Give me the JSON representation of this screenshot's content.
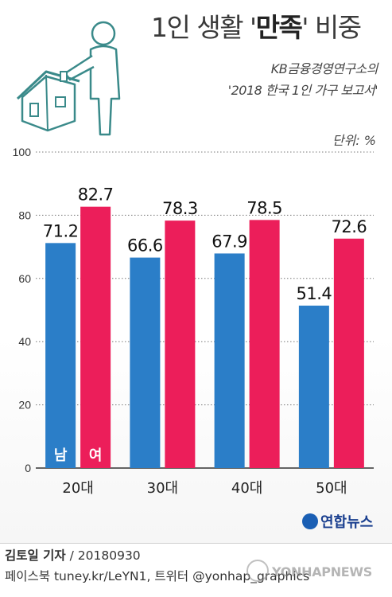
{
  "header": {
    "title_prefix": "1인 생활 '",
    "title_emph": "만족",
    "title_suffix": "' 비중",
    "source_line1": "KB금융경영연구소의",
    "source_line2": "'2018 한국 1인 가구 보고서'",
    "unit": "단위: %"
  },
  "chart_data": {
    "type": "bar",
    "categories": [
      "20대",
      "30대",
      "40대",
      "50대"
    ],
    "series": [
      {
        "name": "남",
        "values": [
          71.2,
          66.6,
          67.9,
          51.4
        ],
        "color": "#2b7ec8"
      },
      {
        "name": "여",
        "values": [
          82.7,
          78.3,
          78.5,
          72.6
        ],
        "color": "#ec1e5a"
      }
    ],
    "ylim": [
      0,
      100
    ],
    "yticks": [
      0,
      20,
      40,
      60,
      80,
      100
    ],
    "grid": true,
    "legend": "inside first group bars"
  },
  "footer": {
    "logo_text": "연합뉴스",
    "reporter": "김토일 기자",
    "date": " / 20180930",
    "social": "페이스북 tuney.kr/LeYN1, 트위터 @yonhap_graphics",
    "watermark": "YONHAPNEWS"
  }
}
